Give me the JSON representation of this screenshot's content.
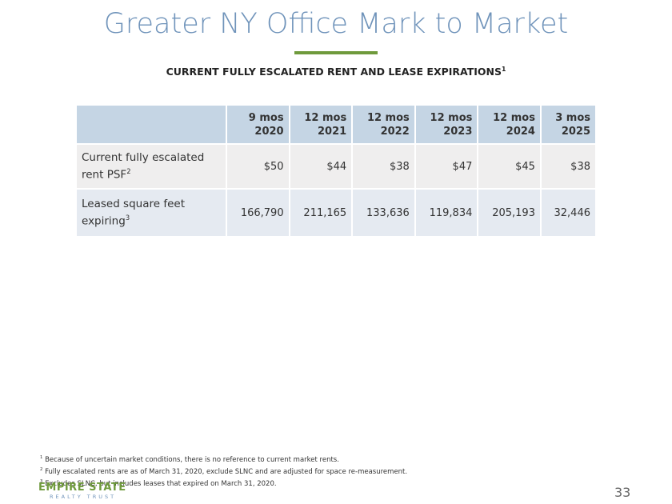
{
  "header": {
    "title": "Greater NY Office Mark to Market",
    "subtitle": "CURRENT FULLY ESCALATED RENT AND LEASE EXPIRATIONS",
    "subtitle_note": "1"
  },
  "table": {
    "columns": [
      {
        "period": "9 mos",
        "year": "2020"
      },
      {
        "period": "12 mos",
        "year": "2021"
      },
      {
        "period": "12 mos",
        "year": "2022"
      },
      {
        "period": "12 mos",
        "year": "2023"
      },
      {
        "period": "12 mos",
        "year": "2024"
      },
      {
        "period": "3 mos",
        "year": "2025"
      }
    ],
    "rows": [
      {
        "label": "Current fully escalated rent PSF",
        "note": "2",
        "cells": [
          "$50",
          "$44",
          "$38",
          "$47",
          "$45",
          "$38"
        ]
      },
      {
        "label": "Leased square feet expiring",
        "note": "3",
        "cells": [
          "166,790",
          "211,165",
          "133,636",
          "119,834",
          "205,193",
          "32,446"
        ]
      }
    ]
  },
  "footnotes": [
    {
      "marker": "1",
      "text": "Because of uncertain market conditions, there is no reference to current market rents."
    },
    {
      "marker": "2",
      "text": "Fully escalated rents are as of March 31, 2020, exclude SLNC and are adjusted for space re-measurement."
    },
    {
      "marker": "3",
      "text": "Excludes SLNC, but includes leases that expired on March 31, 2020."
    }
  ],
  "footer": {
    "logo_top": "EMPIRE STATE",
    "logo_bottom": "REALTY TRUST",
    "page_number": "33"
  }
}
